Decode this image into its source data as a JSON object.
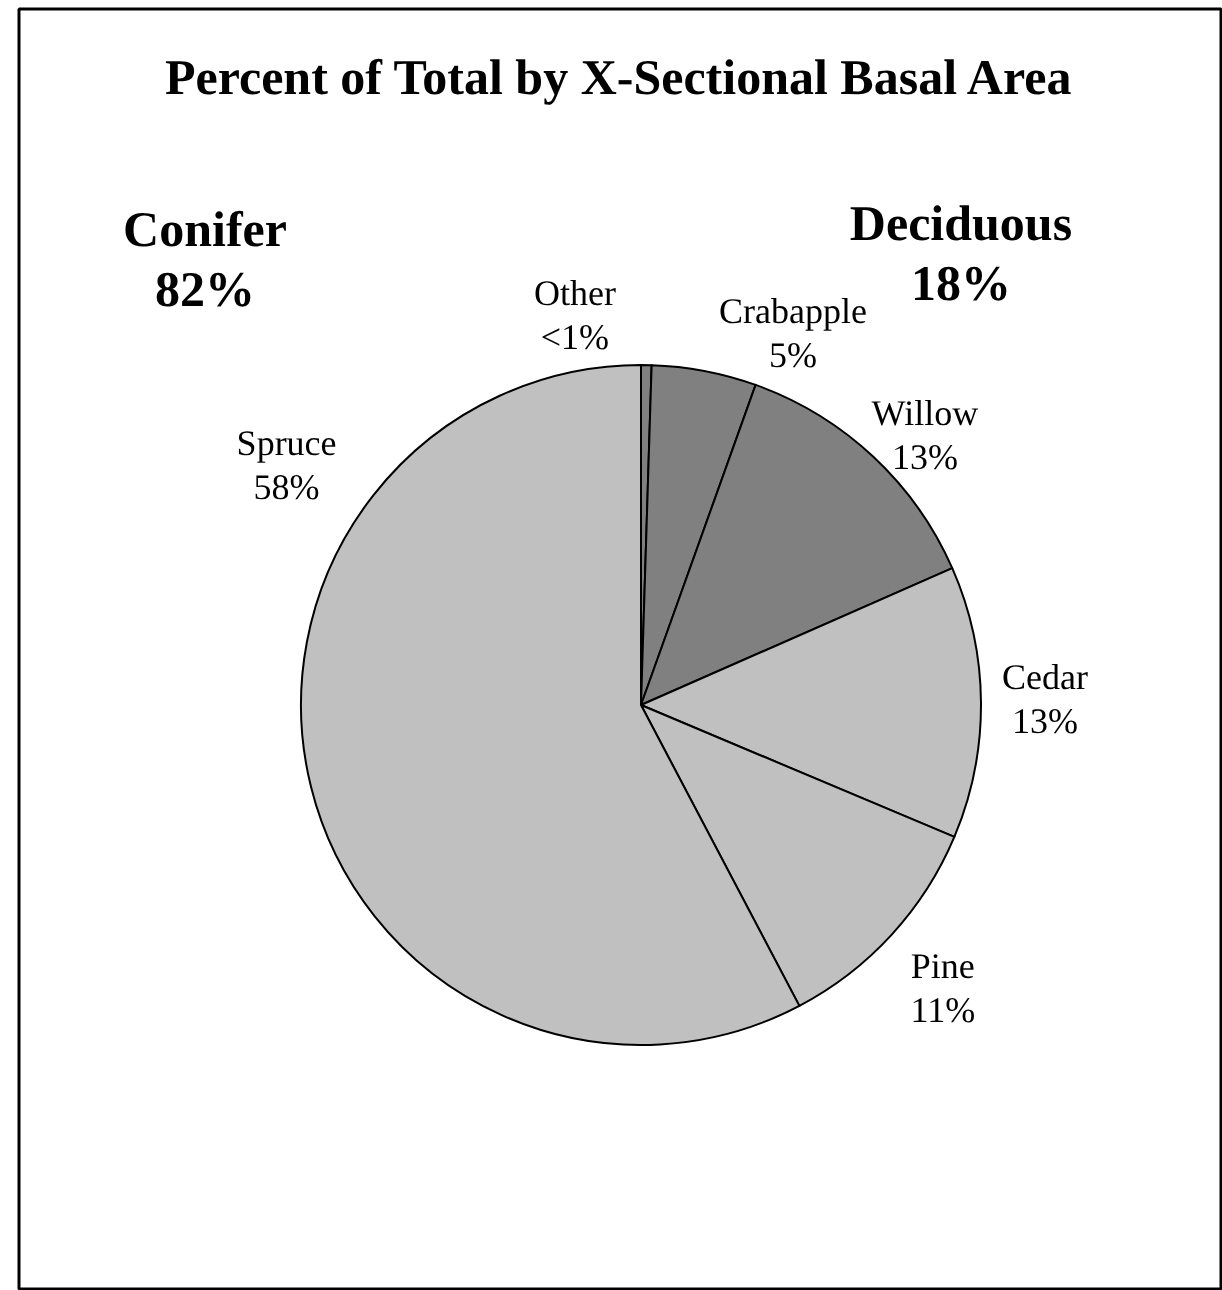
{
  "chart_data": {
    "type": "pie",
    "title": "Percent of Total by X-Sectional Basal Area",
    "categories": [
      "Other",
      "Crabapple",
      "Willow",
      "Cedar",
      "Pine",
      "Spruce"
    ],
    "values": [
      0.5,
      5,
      13,
      13,
      11,
      58
    ],
    "colors": [
      "#808080",
      "#808080",
      "#808080",
      "#c0c0c0",
      "#c0c0c0",
      "#c0c0c0"
    ],
    "value_labels": [
      "<1%",
      "5%",
      "13%",
      "13%",
      "11%",
      "58%"
    ],
    "annotations": [
      "Conifer\n82%",
      "Deciduous\n18%"
    ]
  }
}
